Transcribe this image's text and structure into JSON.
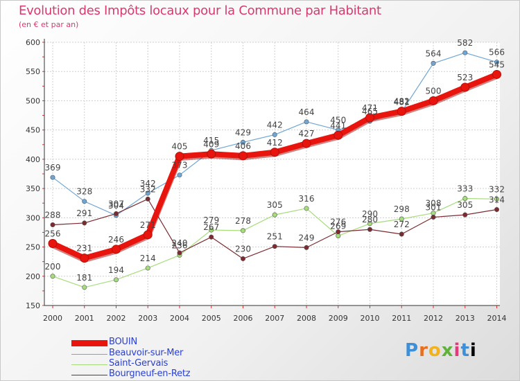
{
  "chart_data": {
    "type": "line",
    "title": "Evolution des Impôts locaux pour la Commune par Habitant",
    "subtitle": "(en € et par an)",
    "xlabel": "",
    "ylabel": "",
    "ylim": [
      150,
      600
    ],
    "yticks": [
      150,
      200,
      250,
      300,
      350,
      400,
      450,
      500,
      550,
      600
    ],
    "categories": [
      "2000",
      "2001",
      "2002",
      "2003",
      "2004",
      "2005",
      "2006",
      "2007",
      "2008",
      "2009",
      "2010",
      "2011",
      "2012",
      "2013",
      "2014"
    ],
    "series": [
      {
        "name": "BOUIN",
        "color": "#e8140e",
        "values": [
          256,
          231,
          246,
          271,
          405,
          409,
          406,
          412,
          427,
          441,
          471,
          482,
          500,
          523,
          545
        ]
      },
      {
        "name": "Beauvoir-sur-Mer",
        "color": "#6fa6d4",
        "values": [
          369,
          328,
          304,
          342,
          373,
          415,
          429,
          442,
          464,
          450,
          465,
          481,
          564,
          582,
          566
        ]
      },
      {
        "name": "Saint-Gervais",
        "color": "#a6dc7c",
        "values": [
          200,
          181,
          194,
          214,
          236,
          279,
          278,
          305,
          316,
          269,
          290,
          298,
          308,
          333,
          332
        ]
      },
      {
        "name": "Bourgneuf-en-Retz",
        "color": "#7b2a30",
        "values": [
          288,
          291,
          307,
          332,
          240,
          267,
          230,
          251,
          249,
          276,
          280,
          272,
          301,
          305,
          314
        ]
      }
    ],
    "legend_position": "bottom-left"
  },
  "branding": {
    "logo_letters": [
      "P",
      "r",
      "o",
      "x",
      "i",
      "t",
      "i"
    ]
  }
}
